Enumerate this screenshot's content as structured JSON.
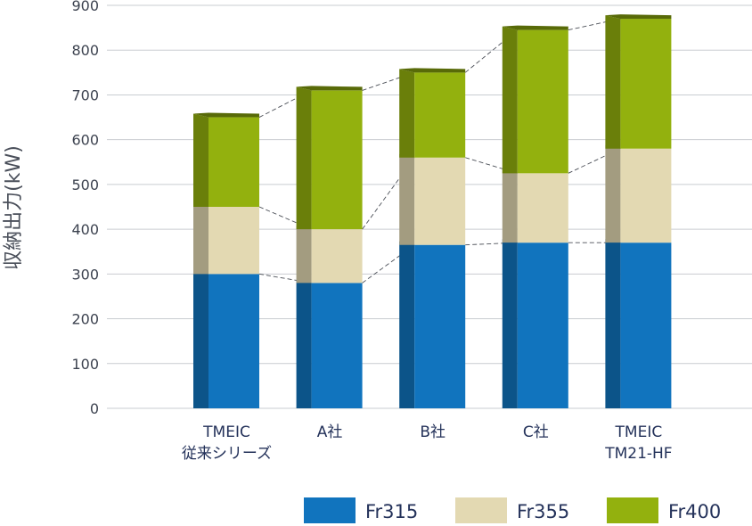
{
  "chart_data": {
    "type": "bar",
    "stacked": true,
    "title": "",
    "xlabel": "",
    "ylabel": "収納出力(kW)",
    "ylim": [
      0,
      900
    ],
    "yticks": [
      0,
      100,
      200,
      300,
      400,
      500,
      600,
      700,
      800,
      900
    ],
    "grid": true,
    "legend_position": "bottom-right",
    "categories": [
      [
        "TMEIC",
        "従来シリーズ"
      ],
      [
        "A社"
      ],
      [
        "B社"
      ],
      [
        "C社"
      ],
      [
        "TMEIC",
        "TM21-HF"
      ]
    ],
    "series": [
      {
        "name": "Fr315",
        "color": "#1174be",
        "values": [
          300,
          280,
          365,
          370,
          370
        ]
      },
      {
        "name": "Fr355",
        "color": "#e3d9b2",
        "values": [
          150,
          120,
          195,
          155,
          210
        ]
      },
      {
        "name": "Fr400",
        "color": "#93b10e",
        "values": [
          200,
          310,
          190,
          320,
          290
        ]
      }
    ]
  }
}
